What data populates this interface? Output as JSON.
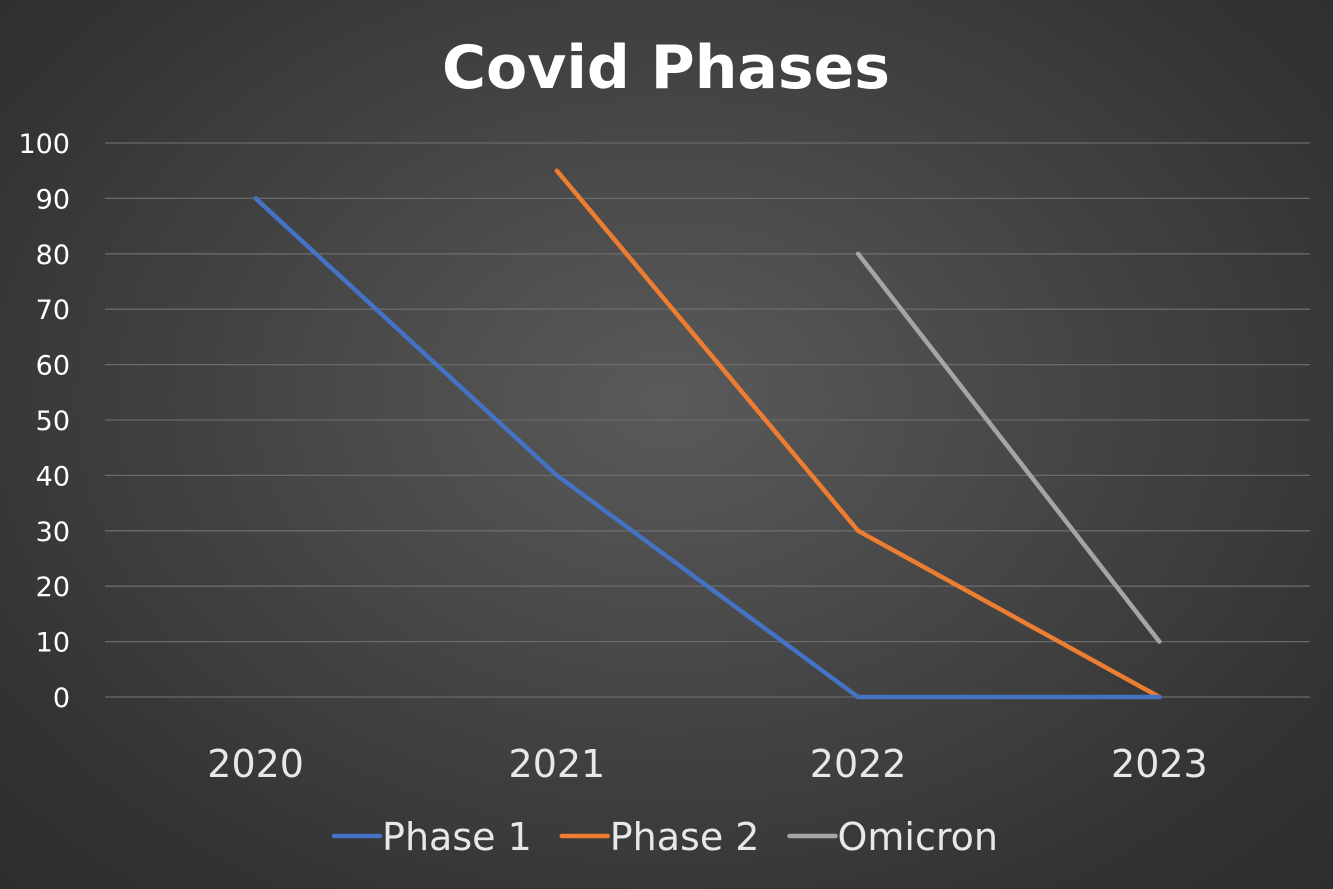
{
  "chart_data": {
    "type": "line",
    "title": "Covid Phases",
    "categories": [
      "2020",
      "2021",
      "2022",
      "2023"
    ],
    "ylim": [
      0,
      100
    ],
    "yticks": [
      0,
      10,
      20,
      30,
      40,
      50,
      60,
      70,
      80,
      90,
      100
    ],
    "grid": true,
    "legend_position": "bottom",
    "series": [
      {
        "name": "Phase 1",
        "color": "#4472c4",
        "values": [
          90,
          40,
          0,
          0
        ]
      },
      {
        "name": "Phase 2",
        "color": "#ed7d31",
        "values": [
          null,
          95,
          30,
          0
        ]
      },
      {
        "name": "Omicron",
        "color": "#a5a5a5",
        "values": [
          null,
          null,
          80,
          10
        ]
      }
    ]
  }
}
